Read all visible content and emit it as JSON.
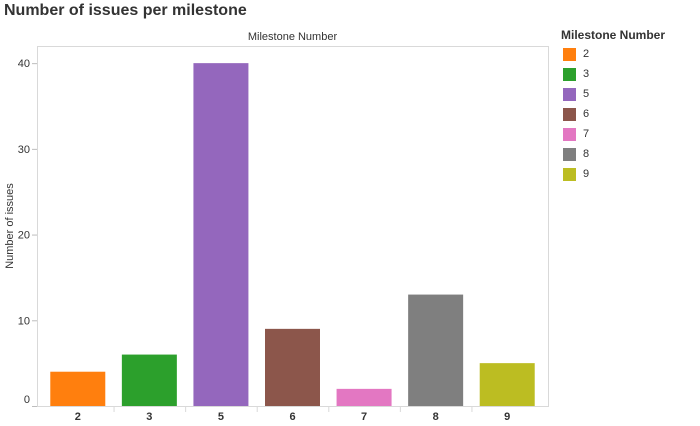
{
  "title": "Number of issues per milestone",
  "legend": {
    "title": "Milestone Number",
    "placement": "right",
    "items": [
      {
        "label": "2",
        "color": "#ff7f0e"
      },
      {
        "label": "3",
        "color": "#2ca02c"
      },
      {
        "label": "5",
        "color": "#9467bd"
      },
      {
        "label": "6",
        "color": "#8c564b"
      },
      {
        "label": "7",
        "color": "#e377c2"
      },
      {
        "label": "8",
        "color": "#7f7f7f"
      },
      {
        "label": "9",
        "color": "#bcbd22"
      }
    ]
  },
  "chart_data": {
    "type": "bar",
    "title": "Number of issues per milestone",
    "xlabel": "Milestone Number",
    "ylabel": "Number of issues",
    "categories": [
      "2",
      "3",
      "5",
      "6",
      "7",
      "8",
      "9"
    ],
    "values": [
      4,
      6,
      40,
      9,
      2,
      13,
      5
    ],
    "colors": [
      "#ff7f0e",
      "#2ca02c",
      "#9467bd",
      "#8c564b",
      "#e377c2",
      "#7f7f7f",
      "#bcbd22"
    ],
    "ylim": [
      0,
      42
    ],
    "yticks": [
      0,
      10,
      20,
      30,
      40
    ],
    "grid": false,
    "legend_placement": "right"
  }
}
